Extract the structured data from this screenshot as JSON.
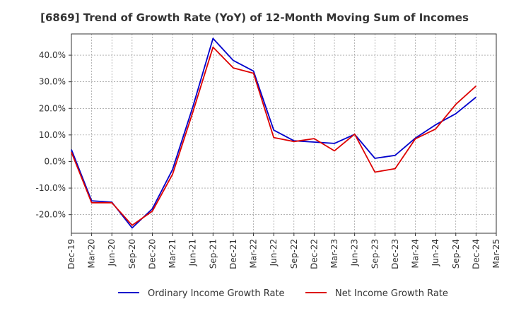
{
  "chart_data": {
    "type": "line",
    "title": "[6869]  Trend of Growth Rate (YoY) of 12-Month Moving Sum of Incomes",
    "xlabel": "",
    "ylabel": "",
    "x": [
      "Dec-19",
      "Mar-20",
      "Jun-20",
      "Sep-20",
      "Dec-20",
      "Mar-21",
      "Jun-21",
      "Sep-21",
      "Dec-21",
      "Mar-22",
      "Jun-22",
      "Sep-22",
      "Dec-22",
      "Mar-23",
      "Jun-23",
      "Sep-23",
      "Dec-23",
      "Mar-24",
      "Jun-24",
      "Sep-24",
      "Dec-24",
      "Mar-25"
    ],
    "ylim": [
      -27,
      48
    ],
    "yticks": [
      -20,
      -10,
      0,
      10,
      20,
      30,
      40
    ],
    "ytick_labels": [
      "-20.0%",
      "-10.0%",
      "0.0%",
      "10.0%",
      "20.0%",
      "30.0%",
      "40.0%"
    ],
    "grid": true,
    "legend_position": "bottom",
    "series": [
      {
        "name": "Ordinary Income Growth Rate",
        "color": "#0000cc",
        "values": [
          4.5,
          -14.8,
          -15.3,
          -25.0,
          -17.8,
          -3.0,
          20.5,
          46.3,
          38.0,
          34.0,
          11.8,
          7.8,
          7.3,
          6.8,
          10.2,
          1.2,
          2.3,
          8.8,
          13.8,
          18.0,
          24.2,
          null
        ]
      },
      {
        "name": "Net Income Growth Rate",
        "color": "#dd0000",
        "values": [
          3.5,
          -15.5,
          -15.5,
          -24.0,
          -18.7,
          -4.8,
          18.5,
          43.0,
          35.2,
          33.2,
          9.0,
          7.5,
          8.6,
          4.0,
          10.3,
          -4.0,
          -2.7,
          8.5,
          12.2,
          21.5,
          28.4,
          null
        ]
      }
    ]
  }
}
